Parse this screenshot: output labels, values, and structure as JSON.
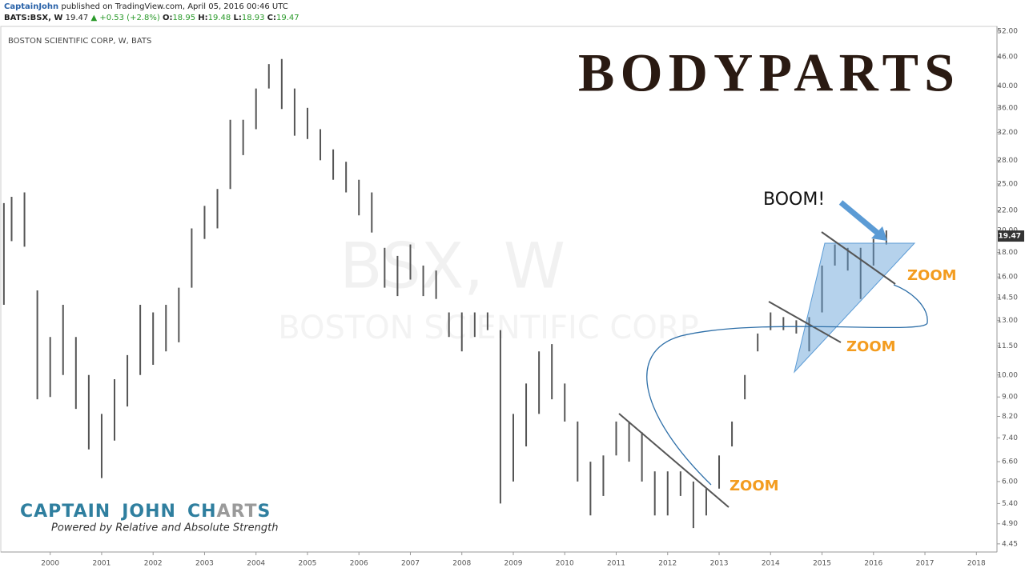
{
  "header": {
    "author": "CaptainJohn",
    "published": "published on TradingView.com, April 05, 2016 00:46 UTC"
  },
  "chart_data": {
    "type": "ohlc",
    "title": "BOSTON SCIENTIFIC CORP, W, BATS",
    "watermark": "BSX, W",
    "watermark_subtitle": "BOSTON SCIENTIFIC CORP",
    "symbol": "BATS:BSX, W",
    "last": 19.47,
    "change": "▲ +0.53 (+2.8%)",
    "ohlc_labels": [
      "O:",
      "H:",
      "L:",
      "C:"
    ],
    "ohlc_now": [
      18.95,
      19.48,
      18.93,
      19.47
    ],
    "color": "#555555",
    "x": [
      1999.1,
      1999.25,
      1999.5,
      1999.75,
      2000.0,
      2000.25,
      2000.5,
      2000.75,
      2001.0,
      2001.25,
      2001.5,
      2001.75,
      2002.0,
      2002.25,
      2002.5,
      2002.75,
      2003.0,
      2003.25,
      2003.5,
      2003.75,
      2004.0,
      2004.25,
      2004.5,
      2004.75,
      2005.0,
      2005.25,
      2005.5,
      2005.75,
      2006.0,
      2006.25,
      2006.5,
      2006.75,
      2007.0,
      2007.25,
      2007.5,
      2007.75,
      2008.0,
      2008.25,
      2008.5,
      2008.75,
      2009.0,
      2009.25,
      2009.5,
      2009.75,
      2010.0,
      2010.25,
      2010.5,
      2010.75,
      2011.0,
      2011.25,
      2011.5,
      2011.75,
      2012.0,
      2012.25,
      2012.5,
      2012.75,
      2013.0,
      2013.25,
      2013.5,
      2013.75,
      2014.0,
      2014.25,
      2014.5,
      2014.75,
      2015.0,
      2015.25,
      2015.5,
      2015.75,
      2016.0,
      2016.25
    ],
    "high": [
      22.8,
      23.5,
      24,
      15,
      12,
      14,
      12,
      10,
      8.3,
      9.8,
      11,
      14,
      13.5,
      14,
      15.2,
      20.2,
      22.5,
      24.4,
      34,
      34,
      39.5,
      44.4,
      45.5,
      39.5,
      36,
      32.5,
      29.5,
      27.8,
      25.5,
      24,
      18.4,
      17.7,
      18.7,
      16.9,
      16.5,
      13.5,
      13.5,
      13.5,
      13.5,
      12.4,
      8.3,
      9.6,
      11.2,
      11.6,
      9.6,
      8,
      6.6,
      6.8,
      8,
      8,
      7.6,
      6.3,
      6.3,
      6.3,
      6,
      5.8,
      6.8,
      8,
      10,
      12.2,
      13.5,
      13.2,
      13,
      13.2,
      16.9,
      18.7,
      18.4,
      18.4,
      19.2,
      20
    ],
    "low": [
      14,
      19,
      18.5,
      8.9,
      9,
      10,
      8.5,
      7,
      6.1,
      7.3,
      8.6,
      10,
      10.5,
      11.2,
      11.7,
      15.2,
      19.2,
      20.2,
      24.4,
      28.7,
      32.5,
      39.5,
      35.8,
      31.5,
      31,
      28,
      25.5,
      24,
      21.5,
      19.8,
      15.2,
      14.6,
      15.8,
      14.6,
      14.4,
      12,
      11.2,
      12,
      12.4,
      5.4,
      6,
      7.1,
      8.3,
      8.9,
      8,
      6,
      5.1,
      5.6,
      6.8,
      6.6,
      6,
      5.1,
      5.1,
      5.6,
      4.8,
      5.1,
      5.8,
      7.1,
      8.9,
      11.2,
      12.4,
      12.4,
      12.2,
      11.2,
      13.5,
      16.9,
      16.5,
      14.4,
      16.9,
      18.7
    ],
    "xlim": [
      1999.04,
      2018.4
    ],
    "xticks": [
      2000,
      2001,
      2002,
      2003,
      2004,
      2005,
      2006,
      2007,
      2008,
      2009,
      2010,
      2011,
      2012,
      2013,
      2014,
      2015,
      2016,
      2017,
      2018
    ],
    "ylim": [
      4.28,
      53.2
    ],
    "log_scale": true,
    "yticks": [
      {
        "value": 4.45,
        "label": "4.45"
      },
      {
        "value": 4.9,
        "label": "4.90"
      },
      {
        "value": 5.4,
        "label": "5.40"
      },
      {
        "value": 6,
        "label": "6.00"
      },
      {
        "value": 6.6,
        "label": "6.60"
      },
      {
        "value": 7.4,
        "label": "7.40"
      },
      {
        "value": 8.2,
        "label": "8.20"
      },
      {
        "value": 9,
        "label": "9.00"
      },
      {
        "value": 10,
        "label": "10.00"
      },
      {
        "value": 11.5,
        "label": "11.50"
      },
      {
        "value": 13,
        "label": "13.00"
      },
      {
        "value": 14.5,
        "label": "14.50"
      },
      {
        "value": 16,
        "label": "16.00"
      },
      {
        "value": 18,
        "label": "18.00"
      },
      {
        "value": 20,
        "label": "20.00"
      },
      {
        "value": 22,
        "label": "22.00"
      },
      {
        "value": 25,
        "label": "25.00"
      },
      {
        "value": 28,
        "label": "28.00"
      },
      {
        "value": 32,
        "label": "32.00"
      },
      {
        "value": 36,
        "label": "36.00"
      },
      {
        "value": 40,
        "label": "40.00"
      },
      {
        "value": 46,
        "label": "46.00"
      },
      {
        "value": 52,
        "label": "52.00"
      }
    ],
    "annotations": [
      "BOOM!",
      "ZOOM",
      "ZOOM",
      "ZOOM"
    ]
  },
  "branding": {
    "logo": "BODYPARTS",
    "name": [
      "CAPTAIN",
      "JOHN",
      "CH",
      "ART",
      "S"
    ],
    "tagline": "Powered by Relative and Absolute Strength"
  }
}
